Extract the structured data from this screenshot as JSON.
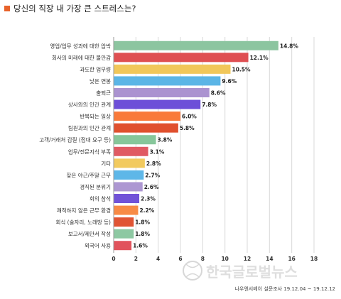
{
  "title": "당신의 직장 내 가장 큰 스트레스는?",
  "accent_color": "#e8632b",
  "source": "나우앤서베이 설문조사 19.12.04 ~ 19.12.12",
  "watermark": "한국글로벌뉴스",
  "chart_data": {
    "type": "bar",
    "orientation": "horizontal",
    "title": "당신의 직장 내 가장 큰 스트레스는?",
    "xlim": [
      0,
      18
    ],
    "x_ticks": [
      "0",
      "2",
      "4",
      "6",
      "8",
      "10",
      "12",
      "14",
      "16",
      "18"
    ],
    "grid": true,
    "categories": [
      "영업/업무 성과에 대한 압박",
      "회사의 미래에 대한 불안감",
      "과도한 업무량",
      "낮은 연봉",
      "출퇴근",
      "상사와의 인간 관계",
      "반복되는 일상",
      "팀원과의 인간 관계",
      "고객/거래처 갑질 (접대 요구 등)",
      "업무/전문지식 부족",
      "기타",
      "잦은 야근/주말 근무",
      "경직된 분위기",
      "회의 참석",
      "쾌적하지 않은 근무 환경",
      "회식 (술자리, 노래방 등)",
      "보고서/제안서 작성",
      "외국어 사용"
    ],
    "values": [
      14.8,
      12.1,
      10.5,
      9.6,
      8.6,
      7.8,
      6.0,
      5.8,
      3.8,
      3.1,
      2.8,
      2.7,
      2.6,
      2.3,
      2.2,
      1.8,
      1.8,
      1.6
    ],
    "value_labels": [
      "14.8%",
      "12.1%",
      "10.5%",
      "9.6%",
      "8.6%",
      "7.8%",
      "6.0%",
      "5.8%",
      "3.8%",
      "3.1%",
      "2.8%",
      "2.7%",
      "2.6%",
      "2.3%",
      "2.2%",
      "1.8%",
      "1.8%",
      "1.6%"
    ],
    "colors": [
      "#8cc5a0",
      "#df4f52",
      "#f1c75a",
      "#5bb5e6",
      "#ab93d0",
      "#6d4fd8",
      "#f97a3a",
      "#e0502e",
      "#86c69a",
      "#e05a63",
      "#f2ca5e",
      "#5eb7e8",
      "#ad97d2",
      "#7152d8",
      "#f88a45",
      "#e05434",
      "#8dc8a2",
      "#e1535c"
    ]
  }
}
